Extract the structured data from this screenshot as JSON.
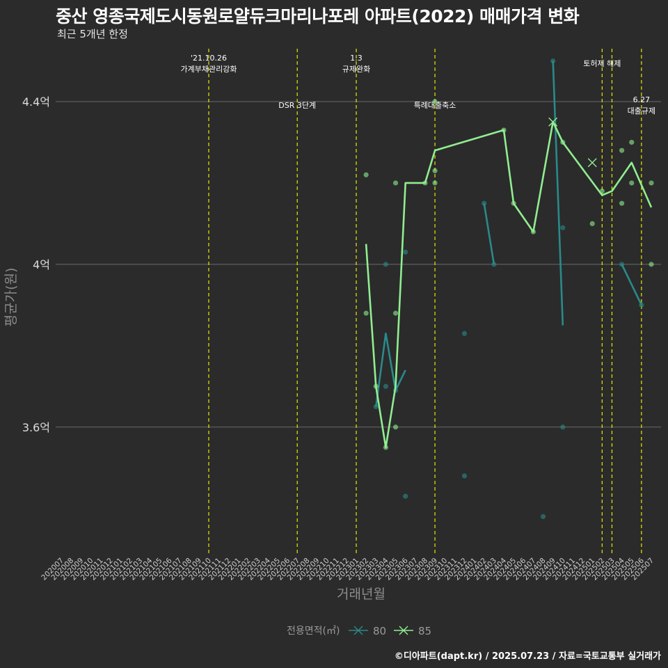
{
  "chart_data": {
    "type": "line",
    "title": "중산 영종국제도시동원로얄듀크마리나포레 아파트(2022) 매매가격 변화",
    "subtitle": "최근 5개년 한정",
    "xlabel": "거래년월",
    "ylabel": "평균가(원)",
    "caption": "©디아파트(dapt.kr) / 2025.07.23 / 자료=국토교통부 실거래가",
    "legend_title": "전용면적(㎡)",
    "legend_position": "bottom",
    "grid": "horizontal",
    "ylim": [
      3.29,
      4.53
    ],
    "yticks": [
      {
        "value": 3.6,
        "label": "3.6억"
      },
      {
        "value": 4.0,
        "label": "4억"
      },
      {
        "value": 4.4,
        "label": "4.4억"
      }
    ],
    "categories": [
      "202007",
      "202008",
      "202009",
      "202010",
      "202011",
      "202012",
      "202101",
      "202102",
      "202103",
      "202104",
      "202105",
      "202106",
      "202107",
      "202108",
      "202109",
      "202110",
      "202111",
      "202112",
      "202201",
      "202202",
      "202203",
      "202204",
      "202205",
      "202206",
      "202207",
      "202208",
      "202209",
      "202210",
      "202211",
      "202212",
      "202301",
      "202302",
      "202303",
      "202304",
      "202305",
      "202306",
      "202307",
      "202308",
      "202309",
      "202310",
      "202311",
      "202312",
      "202401",
      "202402",
      "202403",
      "202404",
      "202405",
      "202406",
      "202407",
      "202408",
      "202409",
      "202410",
      "202411",
      "202412",
      "202501",
      "202502",
      "202503",
      "202504",
      "202505",
      "202506",
      "202507"
    ],
    "events": [
      {
        "month": "202110",
        "lines": [
          "'21.10.26",
          "가계부채관리강화"
        ],
        "level": 1
      },
      {
        "month": "202207",
        "lines": [
          "DSR 3단계"
        ],
        "level": 2
      },
      {
        "month": "202301",
        "lines": [
          "1.3",
          "규제완화"
        ],
        "level": 1
      },
      {
        "month": "202309",
        "lines": [
          "특례대출축소"
        ],
        "level": 2
      },
      {
        "month": "202502",
        "lines": [
          "토허제 해제"
        ],
        "level": 1
      },
      {
        "month": "202503",
        "lines": [],
        "level": 1
      },
      {
        "month": "202506",
        "lines": [
          "6.27",
          "대출규제"
        ],
        "level": 2
      }
    ],
    "series": [
      {
        "name": "80",
        "color": "#2a8a8a",
        "marker": "x",
        "line": [
          [
            "202303",
            3.65
          ],
          [
            "202304",
            3.83
          ],
          [
            "202305",
            3.69
          ],
          [
            "202306",
            3.74
          ],
          null,
          [
            "202402",
            4.15
          ],
          [
            "202403",
            4.0
          ],
          null,
          [
            "202409",
            4.5
          ],
          [
            "202410",
            3.85
          ],
          null,
          [
            "202504",
            4.0
          ],
          [
            "202506",
            3.9
          ]
        ],
        "points": [
          [
            "202303",
            3.65
          ],
          [
            "202304",
            4.0
          ],
          [
            "202304",
            3.7
          ],
          [
            "202305",
            3.69
          ],
          [
            "202306",
            4.03
          ],
          [
            "202306",
            3.43
          ],
          [
            "202312",
            3.83
          ],
          [
            "202312",
            3.48
          ],
          [
            "202402",
            4.15
          ],
          [
            "202403",
            4.0
          ],
          [
            "202408",
            3.38
          ],
          [
            "202409",
            4.5
          ],
          [
            "202410",
            4.09
          ],
          [
            "202410",
            3.6
          ],
          [
            "202504",
            4.0
          ],
          [
            "202506",
            3.9
          ]
        ]
      },
      {
        "name": "85",
        "color": "#90ee90",
        "marker": "x",
        "line": [
          [
            "202302",
            4.05
          ],
          [
            "202303",
            3.7
          ],
          [
            "202304",
            3.55
          ],
          [
            "202305",
            3.7
          ],
          [
            "202306",
            4.2
          ],
          [
            "202308",
            4.2
          ],
          [
            "202309",
            4.28
          ],
          [
            "202404",
            4.33
          ],
          [
            "202405",
            4.15
          ],
          [
            "202407",
            4.08
          ],
          [
            "202409",
            4.35
          ],
          [
            "202410",
            4.3
          ],
          [
            "202502",
            4.17
          ],
          [
            "202503",
            4.18
          ],
          [
            "202505",
            4.25
          ],
          [
            "202507",
            4.14
          ]
        ],
        "points": [
          [
            "202302",
            4.22
          ],
          [
            "202302",
            3.88
          ],
          [
            "202303",
            3.7
          ],
          [
            "202304",
            3.55
          ],
          [
            "202305",
            4.2
          ],
          [
            "202305",
            3.88
          ],
          [
            "202305",
            3.6
          ],
          [
            "202308",
            4.2
          ],
          [
            "202309",
            4.4
          ],
          [
            "202309",
            4.23
          ],
          [
            "202309",
            4.2
          ],
          [
            "202404",
            4.33
          ],
          [
            "202405",
            4.15
          ],
          [
            "202407",
            4.08
          ],
          [
            "202410",
            4.3
          ],
          [
            "202501",
            4.1
          ],
          [
            "202502",
            4.18
          ],
          [
            "202504",
            4.28
          ],
          [
            "202504",
            4.15
          ],
          [
            "202505",
            4.3
          ],
          [
            "202505",
            4.2
          ],
          [
            "202507",
            4.2
          ],
          [
            "202507",
            4.0
          ]
        ],
        "cross_points": [
          [
            "202409",
            4.35
          ],
          [
            "202501",
            4.25
          ]
        ]
      }
    ]
  }
}
